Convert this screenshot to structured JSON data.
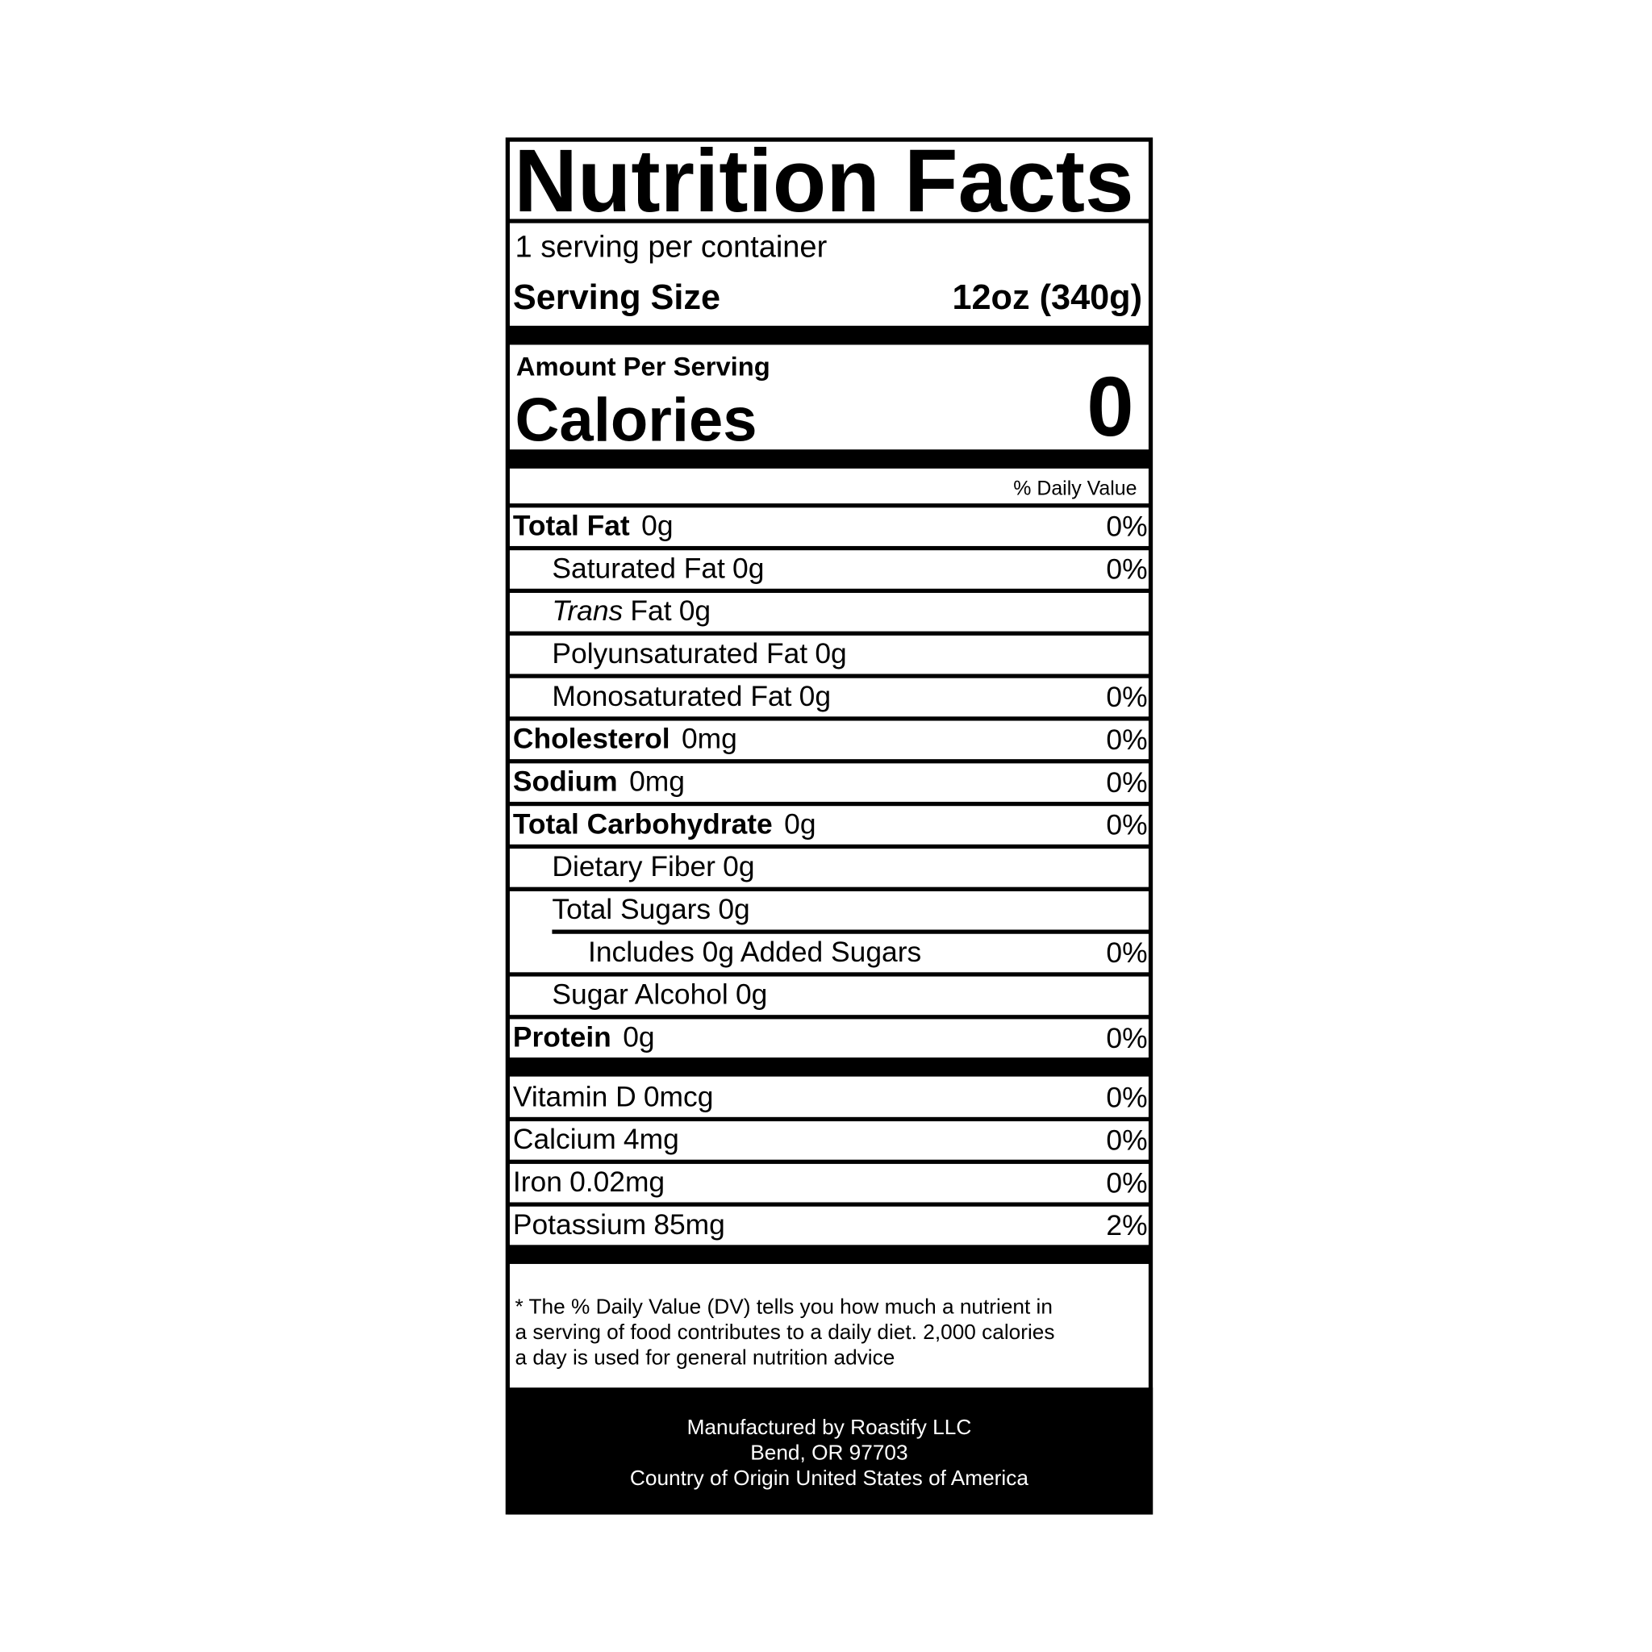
{
  "title": "Nutrition Facts",
  "servings": "1 serving per container",
  "serving_size": {
    "label": "Serving Size",
    "value": "12oz (340g)"
  },
  "amount_per_serving": "Amount Per Serving",
  "calories": {
    "label": "Calories",
    "value": "0"
  },
  "daily_value_header": "% Daily Value",
  "nutrients": [
    {
      "name": "Total Fat",
      "amount": "0g",
      "dv": "0%"
    },
    {
      "name": "Saturated Fat",
      "amount": "0g",
      "dv": "0%"
    },
    {
      "italic": "Trans",
      "name": "Fat",
      "amount": "0g"
    },
    {
      "name": "Polyunsaturated Fat",
      "amount": "0g"
    },
    {
      "name": "Monosaturated Fat",
      "amount": "0g",
      "dv": "0%"
    },
    {
      "name": "Cholesterol",
      "amount": "0mg",
      "dv": "0%"
    },
    {
      "name": "Sodium",
      "amount": "0mg",
      "dv": "0%"
    },
    {
      "name": "Total Carbohydrate",
      "amount": "0g",
      "dv": "0%"
    },
    {
      "name": "Dietary Fiber",
      "amount": "0g"
    },
    {
      "name": "Total Sugars",
      "amount": "0g"
    },
    {
      "name": "Includes 0g Added Sugars",
      "dv": "0%"
    },
    {
      "name": "Sugar Alcohol",
      "amount": "0g"
    },
    {
      "name": "Protein",
      "amount": "0g",
      "dv": "0%"
    }
  ],
  "vitamins": [
    {
      "name": "Vitamin D",
      "amount": "0mcg",
      "dv": "0%"
    },
    {
      "name": "Calcium",
      "amount": "4mg",
      "dv": "0%"
    },
    {
      "name": "Iron",
      "amount": "0.02mg",
      "dv": "0%"
    },
    {
      "name": "Potassium",
      "amount": "85mg",
      "dv": "2%"
    }
  ],
  "footnote": [
    "* The % Daily Value (DV) tells you how much a nutrient in",
    "a serving of food contributes to a daily diet. 2,000 calories",
    "a day is used for general nutrition advice"
  ],
  "manufacturer": [
    "Manufactured by Roastify LLC",
    "Bend, OR 97703",
    "Country of Origin United States of America"
  ]
}
